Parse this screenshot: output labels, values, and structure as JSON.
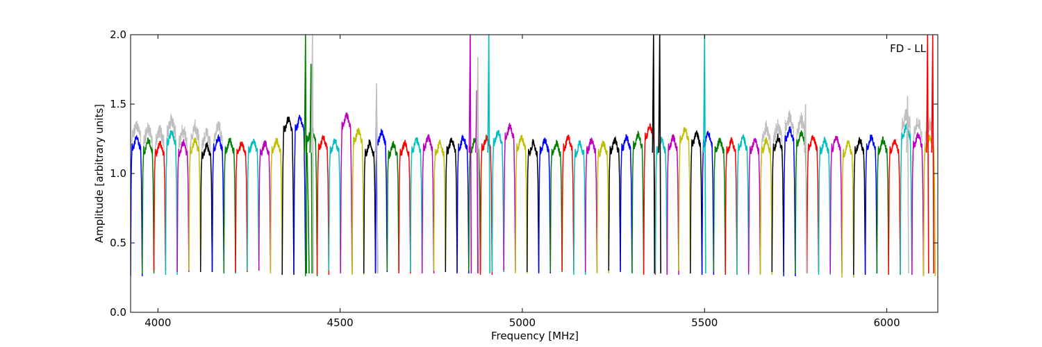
{
  "chart_data": {
    "type": "line",
    "title": "",
    "annotation": "FD - LL",
    "xlabel": "Frequency [MHz]",
    "ylabel": "Amplitude [arbitrary units]",
    "xlim": [
      3925,
      6140
    ],
    "ylim": [
      0.0,
      2.0
    ],
    "xticks": [
      4000,
      4500,
      5000,
      5500,
      6000
    ],
    "yticks": [
      0.0,
      0.5,
      1.0,
      1.5,
      2.0
    ],
    "xtick_labels": [
      "4000",
      "4500",
      "5000",
      "5500",
      "6000"
    ],
    "ytick_labels": [
      "0.0",
      "0.5",
      "1.0",
      "1.5",
      "2.0"
    ],
    "grid": false,
    "legend": "none",
    "channel_width_mhz": 32,
    "channel_start_mhz": 3925,
    "channel_count": 69,
    "colors_cycle": [
      "#0000ff",
      "#008000",
      "#ff0000",
      "#00bfbf",
      "#bf00bf",
      "#bfbf00",
      "#000000"
    ],
    "reference_color": "#bfbfbf",
    "series": [
      {
        "label": "channel passband plateau levels (repeated per 32 MHz spectral window)",
        "plateau": [
          1.22,
          1.2,
          1.18,
          1.26,
          1.18,
          1.2,
          1.16,
          1.22,
          1.2,
          1.18,
          1.2,
          1.18,
          1.2,
          1.35,
          1.36,
          1.28,
          1.22,
          1.2,
          1.38,
          1.27,
          1.18,
          1.26,
          1.17,
          1.18,
          1.2,
          1.22,
          1.18,
          1.2,
          1.22,
          1.2,
          1.22,
          1.26,
          1.3,
          1.22,
          1.18,
          1.2,
          1.18,
          1.22,
          1.18,
          1.2,
          1.18,
          1.2,
          1.22,
          1.24,
          1.3,
          1.2,
          1.22,
          1.28,
          1.25,
          1.25,
          1.2,
          1.2,
          1.22,
          1.2,
          1.2,
          1.22,
          1.28,
          1.25,
          1.22,
          1.2,
          1.22,
          1.18,
          1.2,
          1.22,
          1.2,
          1.2,
          1.3,
          1.24,
          1.22
        ],
        "dip": [
          0.26,
          0.28,
          0.3,
          0.27,
          0.29,
          0.3,
          0.29,
          0.3,
          0.28,
          0.29,
          0.3,
          0.3,
          0.28,
          0.27,
          0.28,
          0.26,
          0.27,
          0.3,
          0.28,
          0.27,
          0.28,
          0.29,
          0.3,
          0.28,
          0.29,
          0.28,
          0.3,
          0.29,
          0.28,
          0.3,
          0.27,
          0.29,
          0.3,
          0.28,
          0.29,
          0.28,
          0.29,
          0.3,
          0.27,
          0.29,
          0.28,
          0.3,
          0.29,
          0.28,
          0.27,
          0.28,
          0.27,
          0.3,
          0.28,
          0.27,
          0.29,
          0.27,
          0.27,
          0.28,
          0.27,
          0.29,
          0.26,
          0.28,
          0.29,
          0.27,
          0.28,
          0.25,
          0.27,
          0.28,
          0.28,
          0.27,
          0.27,
          0.27,
          0.26
        ]
      }
    ],
    "spikes": [
      {
        "x": 4405,
        "y": 2.0,
        "color": "#008000"
      },
      {
        "x": 4412,
        "y": 0.8,
        "color": "#008000"
      },
      {
        "x": 4420,
        "y": 1.79,
        "color": "#008000"
      },
      {
        "x": 4424,
        "y": 2.0,
        "color": "#bfbfbf"
      },
      {
        "x": 4600,
        "y": 1.56,
        "color": "#0000ff"
      },
      {
        "x": 4600,
        "y": 1.65,
        "color": "#bfbfbf"
      },
      {
        "x": 4857,
        "y": 2.0,
        "color": "#bf00bf"
      },
      {
        "x": 4875,
        "y": 1.6,
        "color": "#bf00bf"
      },
      {
        "x": 4878,
        "y": 1.84,
        "color": "#bfbfbf"
      },
      {
        "x": 4908,
        "y": 2.0,
        "color": "#00bfbf"
      },
      {
        "x": 5360,
        "y": 2.0,
        "color": "#000000"
      },
      {
        "x": 5377,
        "y": 2.0,
        "color": "#000000"
      },
      {
        "x": 5500,
        "y": 2.0,
        "color": "#00bfbf"
      },
      {
        "x": 5777,
        "y": 1.5,
        "color": "#bfbfbf"
      },
      {
        "x": 6057,
        "y": 1.56,
        "color": "#bfbfbf"
      },
      {
        "x": 6112,
        "y": 2.0,
        "color": "#ff0000"
      },
      {
        "x": 6126,
        "y": 2.0,
        "color": "#ff0000"
      }
    ]
  }
}
